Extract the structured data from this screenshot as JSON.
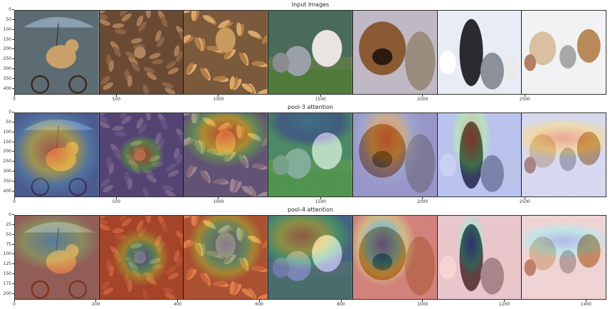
{
  "rows": [
    {
      "title": "Input Images",
      "yticks": [
        "0",
        "50",
        "100",
        "150",
        "200",
        "250",
        "300",
        "350",
        "400"
      ],
      "xticks": [
        "0",
        "500",
        "1000",
        "1500",
        "2000",
        "2500"
      ],
      "xmax": 2900,
      "ymax": 430,
      "overlay": "none"
    },
    {
      "title": "pool-3 attention",
      "yticks": [
        "0",
        "50",
        "100",
        "150",
        "200",
        "250",
        "300",
        "350",
        "400"
      ],
      "xticks": [
        "0",
        "500",
        "1000",
        "1500",
        "2000",
        "2500"
      ],
      "xmax": 2900,
      "ymax": 430,
      "overlay": "pool3"
    },
    {
      "title": "pool-4 attention",
      "yticks": [
        "0",
        "25",
        "50",
        "75",
        "100",
        "125",
        "150",
        "175",
        "200"
      ],
      "xticks": [
        "0",
        "200",
        "400",
        "600",
        "800",
        "1000",
        "1200",
        "1400"
      ],
      "xmax": 1450,
      "ymax": 215,
      "overlay": "pool4"
    }
  ],
  "panels": [
    {
      "subject": "dog-on-bicycle-umbrella-icon",
      "bg": "#5d6b73",
      "mid": "#8a7d6b",
      "fg": "#c9a06a"
    },
    {
      "subject": "dog-hidden-in-leaves-icon",
      "bg": "#6b4a33",
      "mid": "#8a6446",
      "fg": "#a97c57"
    },
    {
      "subject": "dog-in-leaves-icon",
      "bg": "#7a5a3a",
      "mid": "#b07d4a",
      "fg": "#d9a86a"
    },
    {
      "subject": "cats-on-grass-icon",
      "bg": "#5c7a4a",
      "mid": "#9aa0a8",
      "fg": "#e8e4e0"
    },
    {
      "subject": "dog-and-cat-icon",
      "bg": "#c0b8c4",
      "mid": "#8a5a35",
      "fg": "#9a8c7e"
    },
    {
      "subject": "bulldog-and-cats-icon",
      "bg": "#e8ecf4",
      "mid": "#2a2a30",
      "fg": "#8c9098"
    },
    {
      "subject": "dogs-and-kittens-icon",
      "bg": "#f2f2f4",
      "mid": "#b88a5a",
      "fg": "#d8c0a0"
    }
  ]
}
